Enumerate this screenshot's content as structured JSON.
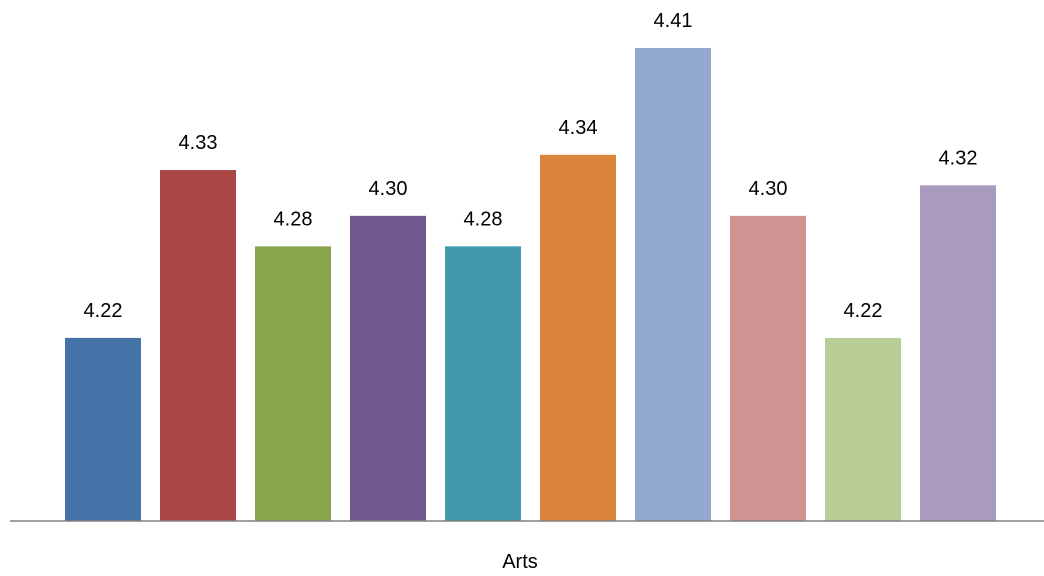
{
  "chart_data": {
    "type": "bar",
    "categories": [
      "Arts"
    ],
    "series": [
      {
        "values": [
          4.22
        ],
        "color": "#4572A7"
      },
      {
        "values": [
          4.33
        ],
        "color": "#AA4643"
      },
      {
        "values": [
          4.28
        ],
        "color": "#89A54E"
      },
      {
        "values": [
          4.3
        ],
        "color": "#71588F"
      },
      {
        "values": [
          4.28
        ],
        "color": "#4198AF"
      },
      {
        "values": [
          4.34
        ],
        "color": "#DB843D"
      },
      {
        "values": [
          4.41
        ],
        "color": "#93A9CF"
      },
      {
        "values": [
          4.3
        ],
        "color": "#D19392"
      },
      {
        "values": [
          4.22
        ],
        "color": "#B9CD96"
      },
      {
        "values": [
          4.32
        ],
        "color": "#A99BBD"
      }
    ],
    "data_labels": [
      "4.22",
      "4.33",
      "4.28",
      "4.30",
      "4.28",
      "4.34",
      "4.41",
      "4.30",
      "4.22",
      "4.32"
    ],
    "title": "",
    "xlabel": "",
    "ylabel": "",
    "ylim": [
      4.1,
      4.41
    ],
    "grid": false,
    "legend": "none",
    "axis_color": "#808080"
  }
}
